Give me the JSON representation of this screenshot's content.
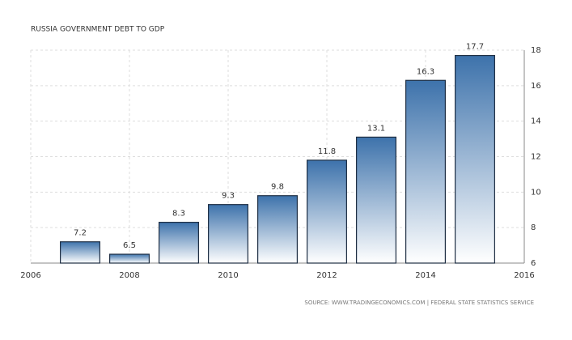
{
  "chart_data": {
    "type": "bar",
    "title": "RUSSIA GOVERNMENT DEBT TO GDP",
    "source": "SOURCE: WWW.TRADINGECONOMICS.COM | FEDERAL STATE STATISTICS SERVICE",
    "x": [
      2007,
      2008,
      2009,
      2010,
      2011,
      2012,
      2013,
      2014,
      2015
    ],
    "values": [
      7.2,
      6.5,
      8.3,
      9.3,
      9.8,
      11.8,
      13.1,
      16.3,
      17.7
    ],
    "color": "#3d72ab",
    "xlim": [
      2006,
      2016
    ],
    "xticks": [
      2006,
      2008,
      2010,
      2012,
      2014,
      2016
    ],
    "ylim": [
      6,
      18
    ],
    "yticks": [
      6,
      8,
      10,
      12,
      14,
      16,
      18
    ],
    "grid": true
  }
}
